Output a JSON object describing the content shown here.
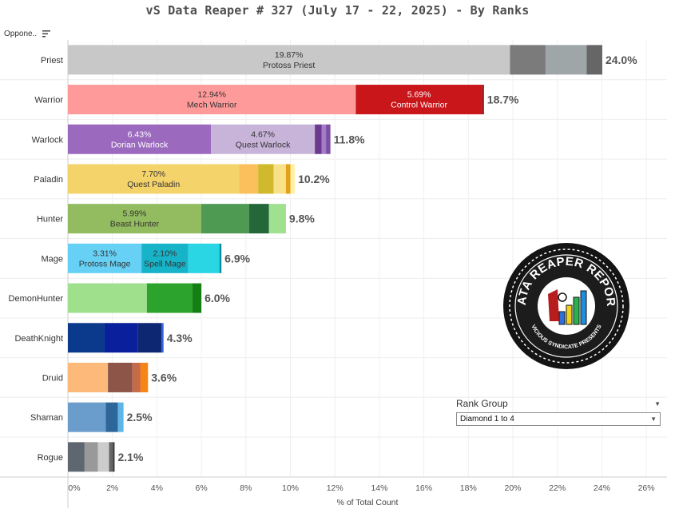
{
  "title": "vS Data Reaper #  327 (July 17 - 22, 2025) - By Ranks",
  "sort_header": "Oppone..",
  "chart_data": {
    "type": "bar",
    "orientation": "horizontal",
    "stacked": true,
    "xlabel": "% of Total Count",
    "xlim": [
      0,
      26.5
    ],
    "x_ticks": [
      "0%",
      "2%",
      "4%",
      "6%",
      "8%",
      "10%",
      "12%",
      "14%",
      "16%",
      "18%",
      "20%",
      "22%",
      "24%",
      "26%"
    ],
    "x_tick_values": [
      0,
      2,
      4,
      6,
      8,
      10,
      12,
      14,
      16,
      18,
      20,
      22,
      24,
      26
    ],
    "categories": [
      {
        "name": "Priest",
        "total": "24.0%",
        "segments": [
          {
            "value": 19.87,
            "color": "#c8c8c8",
            "label": "19.87%",
            "sublabel": "Protoss Priest",
            "text_color": "#333333"
          },
          {
            "value": 1.6,
            "color": "#7b7b7b"
          },
          {
            "value": 1.85,
            "color": "#9fa6a8"
          },
          {
            "value": 0.7,
            "color": "#666666"
          }
        ]
      },
      {
        "name": "Warrior",
        "total": "18.7%",
        "segments": [
          {
            "value": 12.94,
            "color": "#ff9a9a",
            "label": "12.94%",
            "sublabel": "Mech Warrior",
            "text_color": "#333333"
          },
          {
            "value": 5.69,
            "color": "#c8161b",
            "label": "5.69%",
            "sublabel": "Control Warrior",
            "text_color": "#ffffff"
          },
          {
            "value": 0.07,
            "color": "#8b1010"
          }
        ]
      },
      {
        "name": "Warlock",
        "total": "11.8%",
        "segments": [
          {
            "value": 6.43,
            "color": "#9b6abf",
            "label": "6.43%",
            "sublabel": "Dorian Warlock",
            "text_color": "#ffffff"
          },
          {
            "value": 4.67,
            "color": "#c8b3d9",
            "label": "4.67%",
            "sublabel": "Quest Warlock",
            "text_color": "#333333"
          },
          {
            "value": 0.3,
            "color": "#6b3a8f"
          },
          {
            "value": 0.2,
            "color": "#a37cc7"
          },
          {
            "value": 0.2,
            "color": "#7d4ea3"
          }
        ]
      },
      {
        "name": "Paladin",
        "total": "10.2%",
        "segments": [
          {
            "value": 7.7,
            "color": "#f5d36b",
            "label": "7.70%",
            "sublabel": "Quest Paladin",
            "text_color": "#333333"
          },
          {
            "value": 0.85,
            "color": "#fbbf5c"
          },
          {
            "value": 0.7,
            "color": "#d0b92c"
          },
          {
            "value": 0.55,
            "color": "#f9e18a"
          },
          {
            "value": 0.2,
            "color": "#e3a018"
          },
          {
            "value": 0.2,
            "color": "#fff1a8"
          }
        ]
      },
      {
        "name": "Hunter",
        "total": "9.8%",
        "segments": [
          {
            "value": 5.99,
            "color": "#93bb5f",
            "label": "5.99%",
            "sublabel": "Beast Hunter",
            "text_color": "#333333"
          },
          {
            "value": 2.15,
            "color": "#4e9a52"
          },
          {
            "value": 0.9,
            "color": "#24683a"
          },
          {
            "value": 0.76,
            "color": "#9fe18f"
          }
        ]
      },
      {
        "name": "Mage",
        "total": "6.9%",
        "segments": [
          {
            "value": 3.31,
            "color": "#66d0f5",
            "label": "3.31%",
            "sublabel": "Protoss Mage",
            "text_color": "#333333"
          },
          {
            "value": 2.1,
            "color": "#17b4c9",
            "label": "2.10%",
            "sublabel": "Spell Mage",
            "text_color": "#333333"
          },
          {
            "value": 1.4,
            "color": "#2ad6e3"
          },
          {
            "value": 0.09,
            "color": "#0c8aa0"
          }
        ]
      },
      {
        "name": "DemonHunter",
        "total": "6.0%",
        "segments": [
          {
            "value": 3.55,
            "color": "#9ee08c"
          },
          {
            "value": 2.05,
            "color": "#2ca32c"
          },
          {
            "value": 0.4,
            "color": "#148014"
          }
        ]
      },
      {
        "name": "DeathKnight",
        "total": "4.3%",
        "segments": [
          {
            "value": 1.65,
            "color": "#0b3a8c"
          },
          {
            "value": 1.5,
            "color": "#0a1f9c"
          },
          {
            "value": 1.05,
            "color": "#0e2773"
          },
          {
            "value": 0.1,
            "color": "#3b63d9"
          }
        ]
      },
      {
        "name": "Druid",
        "total": "3.6%",
        "segments": [
          {
            "value": 1.8,
            "color": "#fcb97a"
          },
          {
            "value": 1.1,
            "color": "#8c5548"
          },
          {
            "value": 0.35,
            "color": "#c76a4a"
          },
          {
            "value": 0.35,
            "color": "#f58518"
          }
        ]
      },
      {
        "name": "Shaman",
        "total": "2.5%",
        "segments": [
          {
            "value": 1.7,
            "color": "#6a9dcc"
          },
          {
            "value": 0.55,
            "color": "#2f6699"
          },
          {
            "value": 0.25,
            "color": "#5fb5e6"
          }
        ]
      },
      {
        "name": "Rogue",
        "total": "2.1%",
        "segments": [
          {
            "value": 0.75,
            "color": "#5e6670"
          },
          {
            "value": 0.6,
            "color": "#999999"
          },
          {
            "value": 0.5,
            "color": "#cccccc"
          },
          {
            "value": 0.15,
            "color": "#666666"
          },
          {
            "value": 0.1,
            "color": "#444444"
          }
        ]
      }
    ]
  },
  "rank_filter": {
    "title": "Rank Group",
    "selected": "Diamond 1 to 4"
  },
  "logo": {
    "text_top": "DATA REAPER REPORT",
    "text_bottom": "VICIOUS SYNDICATE PRESENTS",
    "bar_colors": [
      "#2e6fd8",
      "#f2d11b",
      "#2bb24c",
      "#1e8de0"
    ]
  }
}
